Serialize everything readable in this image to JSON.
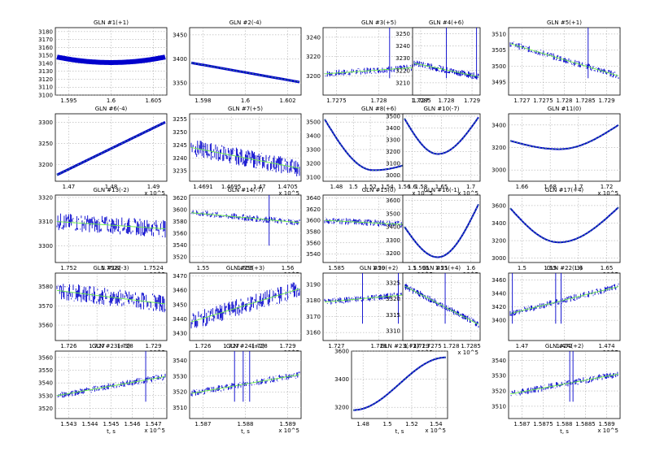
{
  "figure": {
    "background": "#ffffff"
  },
  "colors": {
    "data": "#0000cc",
    "fit": "#66ee44"
  },
  "chart_data": [
    {
      "title": "GLN #1(+1)",
      "type": "line",
      "xticks": [
        "1.595",
        "1.6",
        "1.605"
      ],
      "yticks": [
        "3100",
        "3110",
        "3120",
        "3130",
        "3140",
        "3150",
        "3160",
        "3170",
        "3180"
      ],
      "ylim": [
        3100,
        3185
      ],
      "exp": "",
      "xlabel": "",
      "shape": "band_u",
      "y_from": 3148,
      "y_to": 3148,
      "y_mid": 3141
    },
    {
      "title": "GLN #2(-4)",
      "type": "line",
      "xticks": [
        "1.598",
        "1.6",
        "1.602"
      ],
      "yticks": [
        "3350",
        "3400",
        "3450"
      ],
      "ylim": [
        3325,
        3465
      ],
      "exp": "",
      "xlabel": "",
      "shape": "line",
      "y_from": 3392,
      "y_to": 3352
    },
    {
      "title": "GLN #3(+5)",
      "type": "line",
      "xticks": [
        "1.7275",
        "1.728",
        "1.7285"
      ],
      "yticks": [
        "3200",
        "3220",
        "3240"
      ],
      "ylim": [
        3180,
        3250
      ],
      "exp": "",
      "xlabel": "",
      "shape": "jitter_spike",
      "y_from": 3202,
      "y_to": 3210,
      "spikes": [
        0.6
      ]
    },
    {
      "title": "GLN #4(+6)",
      "type": "line",
      "xticks": [
        "1.727",
        "1.728",
        "1.729"
      ],
      "yticks": [
        "3210",
        "3220",
        "3230",
        "3240",
        "3250"
      ],
      "ylim": [
        3200,
        3255
      ],
      "exp": "",
      "xlabel": "",
      "shape": "jitter_spike",
      "y_from": 3226,
      "y_to": 3215,
      "spikes": [
        0.5,
        0.97
      ]
    },
    {
      "title": "GLN #5(+1)",
      "type": "line",
      "xticks": [
        "1.727",
        "1.7275",
        "1.728",
        "1.7285",
        "1.729"
      ],
      "yticks": [
        "3495",
        "3500",
        "3505",
        "3510"
      ],
      "ylim": [
        3491,
        3512
      ],
      "exp": "",
      "xlabel": "",
      "shape": "jitter_spike",
      "y_from": 3507,
      "y_to": 3497,
      "spikes": [
        0.72
      ]
    },
    {
      "title": "GLN #6(-4)",
      "type": "line",
      "xticks": [
        "1.47",
        "1.48",
        "1.49"
      ],
      "yticks": [
        "3200",
        "3250",
        "3300"
      ],
      "ylim": [
        3160,
        3320
      ],
      "exp": "x 10^5",
      "xlabel": "",
      "shape": "line",
      "y_from": 3175,
      "y_to": 3300
    },
    {
      "title": "GLN #7(+5)",
      "type": "line",
      "xticks": [
        "1.4691",
        "1.4695",
        "1.47",
        "1.4705"
      ],
      "yticks": [
        "3235",
        "3240",
        "3245",
        "3250",
        "3255"
      ],
      "ylim": [
        3231,
        3257
      ],
      "exp": "x 10^5",
      "xlabel": "",
      "shape": "jitter_band",
      "y_from": 3244,
      "y_to": 3236
    },
    {
      "title": "GLN #8(+6)",
      "type": "line",
      "xticks": [
        "1.48",
        "1.5",
        "1.52",
        "1.54",
        "1.56",
        "1.58"
      ],
      "yticks": [
        "3100",
        "3200",
        "3300",
        "3400",
        "3500"
      ],
      "ylim": [
        3070,
        3560
      ],
      "exp": "x 10^5",
      "xlabel": "",
      "shape": "valley",
      "y_from": 3520,
      "y_to": 3270,
      "y_mid": 3150
    },
    {
      "title": "GLN #10(-7)",
      "type": "line",
      "xticks": [
        "1.6",
        "1.65",
        "1.7"
      ],
      "yticks": [
        "3000",
        "3100",
        "3200",
        "3300",
        "3400",
        "3500"
      ],
      "ylim": [
        2950,
        3520
      ],
      "exp": "x 10^5",
      "xlabel": "",
      "shape": "valley",
      "y_from": 3480,
      "y_to": 3490,
      "y_mid": 3180
    },
    {
      "title": "GLN #11(0)",
      "type": "line",
      "xticks": [
        "1.66",
        "1.68",
        "1.7",
        "1.72"
      ],
      "yticks": [
        "3000",
        "3200",
        "3400"
      ],
      "ylim": [
        2900,
        3500
      ],
      "exp": "x 10^5",
      "xlabel": "",
      "shape": "valley",
      "y_from": 3260,
      "y_to": 3400,
      "y_mid": 3185
    },
    {
      "title": "GLN #13(-2)",
      "type": "line",
      "xticks": [
        "1.752",
        "1.7522",
        "1.7524"
      ],
      "yticks": [
        "3300",
        "3310",
        "3320"
      ],
      "ylim": [
        3293,
        3321
      ],
      "exp": "x 10^5",
      "xlabel": "",
      "shape": "jitter_band",
      "y_from": 3310,
      "y_to": 3307
    },
    {
      "title": "GLN #14(-7)",
      "type": "line",
      "xticks": [
        "1.55",
        "1.555",
        "1.56"
      ],
      "yticks": [
        "3520",
        "3540",
        "3560",
        "3580",
        "3600",
        "3620"
      ],
      "ylim": [
        3510,
        3625
      ],
      "exp": "x 10^5",
      "xlabel": "",
      "shape": "jitter_spike",
      "y_from": 3595,
      "y_to": 3578,
      "spikes": [
        0.72
      ]
    },
    {
      "title": "GLN #15(0)",
      "type": "line",
      "xticks": [
        "1.585",
        "1.59",
        "1.595"
      ],
      "yticks": [
        "3540",
        "3560",
        "3580",
        "3600",
        "3620",
        "3640"
      ],
      "ylim": [
        3525,
        3645
      ],
      "exp": "x 10^5",
      "xlabel": "",
      "shape": "jitter_spike",
      "y_from": 3600,
      "y_to": 3590,
      "spikes": [
        0.99
      ]
    },
    {
      "title": "GLN #16(-1)",
      "type": "line",
      "xticks": [
        "1.5",
        "1.55",
        "1.6"
      ],
      "yticks": [
        "3200",
        "3300",
        "3400",
        "3500",
        "3600"
      ],
      "ylim": [
        3130,
        3640
      ],
      "exp": "x 10^5",
      "xlabel": "",
      "shape": "valley",
      "y_from": 3400,
      "y_to": 3570,
      "y_mid": 3170
    },
    {
      "title": "GLN #17(+4)",
      "type": "line",
      "xticks": [
        "1.5",
        "1.55",
        "1.6",
        "1.65"
      ],
      "yticks": [
        "3000",
        "3200",
        "3400",
        "3600"
      ],
      "ylim": [
        2950,
        3720
      ],
      "exp": "x 10^5",
      "xlabel": "",
      "shape": "valley",
      "y_from": 3570,
      "y_to": 3580,
      "y_mid": 3180
    },
    {
      "title": "GLN #18(-3)",
      "type": "line",
      "xticks": [
        "1.726",
        "1.727",
        "1.728",
        "1.729"
      ],
      "yticks": [
        "3560",
        "3570",
        "3580"
      ],
      "ylim": [
        3552,
        3587
      ],
      "exp": "x 10^5",
      "xlabel": "",
      "shape": "jitter_band",
      "y_from": 3578,
      "y_to": 3571
    },
    {
      "title": "GLN #19(+3)",
      "type": "line",
      "xticks": [
        "1.726",
        "1.727",
        "1.728",
        "1.729"
      ],
      "yticks": [
        "3430",
        "3440",
        "3450",
        "3460",
        "3470"
      ],
      "ylim": [
        3425,
        3472
      ],
      "exp": "x 10^5",
      "xlabel": "",
      "shape": "jitter_band",
      "y_from": 3438,
      "y_to": 3461
    },
    {
      "title": "GLN #20(+2)",
      "type": "line",
      "xticks": [
        "1.727",
        "1.728",
        "1.729"
      ],
      "yticks": [
        "3160",
        "3170",
        "3180",
        "3190"
      ],
      "ylim": [
        3155,
        3197
      ],
      "exp": "x 10^5",
      "xlabel": "",
      "shape": "jitter_spike",
      "y_from": 3179,
      "y_to": 3185,
      "spikes": [
        0.35,
        0.68
      ]
    },
    {
      "title": "GLN #21(+4)",
      "type": "line",
      "xticks": [
        "1.727",
        "1.7275",
        "1.728",
        "1.7285"
      ],
      "yticks": [
        "3310",
        "3315",
        "3320",
        "3325"
      ],
      "ylim": [
        3307,
        3328
      ],
      "exp": "x 10^5",
      "xlabel": "",
      "shape": "jitter_spike",
      "y_from": 3324,
      "y_to": 3312,
      "spikes": [
        0.55
      ]
    },
    {
      "title": "GLN #22(-3)",
      "type": "line",
      "xticks": [
        "1.47",
        "1.472",
        "1.474"
      ],
      "yticks": [
        "3400",
        "3420",
        "3440",
        "3460"
      ],
      "ylim": [
        3370,
        3470
      ],
      "exp": "x 10^5",
      "xlabel": "",
      "shape": "jitter_spike",
      "y_from": 3410,
      "y_to": 3450,
      "spikes": [
        0.42,
        0.47,
        0.02
      ]
    },
    {
      "title": "GLN #23(+3)",
      "type": "line",
      "xticks": [
        "1.543",
        "1.544",
        "1.545",
        "1.546",
        "1.547"
      ],
      "yticks": [
        "3520",
        "3530",
        "3540",
        "3550",
        "3560"
      ],
      "ylim": [
        3512,
        3565
      ],
      "exp": "x 10^5",
      "xlabel": "t, s",
      "shape": "jitter_spike",
      "y_from": 3530,
      "y_to": 3545,
      "spikes": [
        0.82
      ]
    },
    {
      "title": "GLN #24(+2)",
      "type": "line",
      "xticks": [
        "1.587",
        "1.588",
        "1.589"
      ],
      "yticks": [
        "3510",
        "3520",
        "3530",
        "3540"
      ],
      "ylim": [
        3503,
        3546
      ],
      "exp": "x 10^5",
      "xlabel": "t, s",
      "shape": "jitter_spike",
      "y_from": 3519,
      "y_to": 3531,
      "spikes": [
        0.4,
        0.48,
        0.54
      ]
    },
    {
      "title": "GLN #23(+3)",
      "type": "line",
      "xticks": [
        "1.48",
        "1.5",
        "1.52",
        "1.54"
      ],
      "yticks": [
        "3200",
        "3400",
        "3600"
      ],
      "ylim": [
        3120,
        3600
      ],
      "exp": "x 10^5",
      "xlabel": "t, s",
      "shape": "line_s",
      "y_from": 3180,
      "y_to": 3555
    },
    {
      "title": "GLN #24(+2)",
      "type": "line",
      "xticks": [
        "1.587",
        "1.5875",
        "1.588",
        "1.5885",
        "1.589"
      ],
      "yticks": [
        "3510",
        "3520",
        "3530",
        "3540"
      ],
      "ylim": [
        3502,
        3546
      ],
      "exp": "x 10^5",
      "xlabel": "t, s",
      "shape": "jitter_spike",
      "y_from": 3518,
      "y_to": 3531,
      "spikes": [
        0.55,
        0.58
      ]
    }
  ]
}
